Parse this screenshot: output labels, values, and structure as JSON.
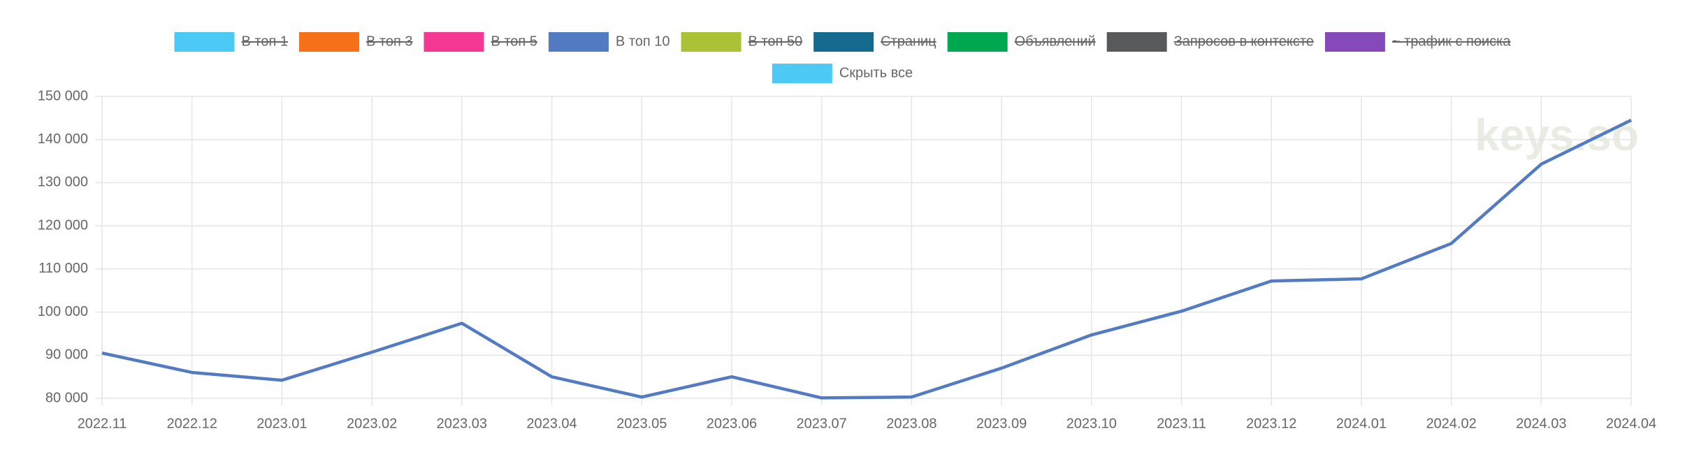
{
  "chart_data": {
    "type": "line",
    "legend": [
      {
        "name": "В топ 1",
        "color": "#4dc9f6",
        "hidden": true
      },
      {
        "name": "В топ 3",
        "color": "#f67019",
        "hidden": true
      },
      {
        "name": "В топ 5",
        "color": "#f53794",
        "hidden": true
      },
      {
        "name": "В топ 10",
        "color": "#537bc4",
        "hidden": false
      },
      {
        "name": "В топ 50",
        "color": "#acc236",
        "hidden": true
      },
      {
        "name": "Страниц",
        "color": "#166a8f",
        "hidden": true
      },
      {
        "name": "Объявлений",
        "color": "#00a950",
        "hidden": true
      },
      {
        "name": "Запросов в контексте",
        "color": "#58595b",
        "hidden": true
      },
      {
        "name": "~ трафик с поиска",
        "color": "#8549ba",
        "hidden": true
      }
    ],
    "legend_button": {
      "name": "Скрыть все",
      "color": "#4dc9f6"
    },
    "watermark": "keys.so",
    "categories": [
      "2022.11",
      "2022.12",
      "2023.01",
      "2023.02",
      "2023.03",
      "2023.04",
      "2023.05",
      "2023.06",
      "2023.07",
      "2023.08",
      "2023.09",
      "2023.10",
      "2023.11",
      "2023.12",
      "2024.01",
      "2024.02",
      "2024.03",
      "2024.04"
    ],
    "series": [
      {
        "name": "В топ 10",
        "color": "#537bc4",
        "values": [
          90500,
          86000,
          84200,
          90700,
          97400,
          85000,
          80300,
          85000,
          80100,
          80300,
          87000,
          94700,
          100200,
          107200,
          107700,
          115900,
          134300,
          144500
        ]
      }
    ],
    "ylim": [
      80000,
      150000
    ],
    "yticks": [
      {
        "value": 80000,
        "label": "80 000"
      },
      {
        "value": 90000,
        "label": "90 000"
      },
      {
        "value": 100000,
        "label": "100 000"
      },
      {
        "value": 110000,
        "label": "110 000"
      },
      {
        "value": 120000,
        "label": "120 000"
      },
      {
        "value": 130000,
        "label": "130 000"
      },
      {
        "value": 140000,
        "label": "140 000"
      },
      {
        "value": 150000,
        "label": "150 000"
      }
    ],
    "grid": true
  }
}
